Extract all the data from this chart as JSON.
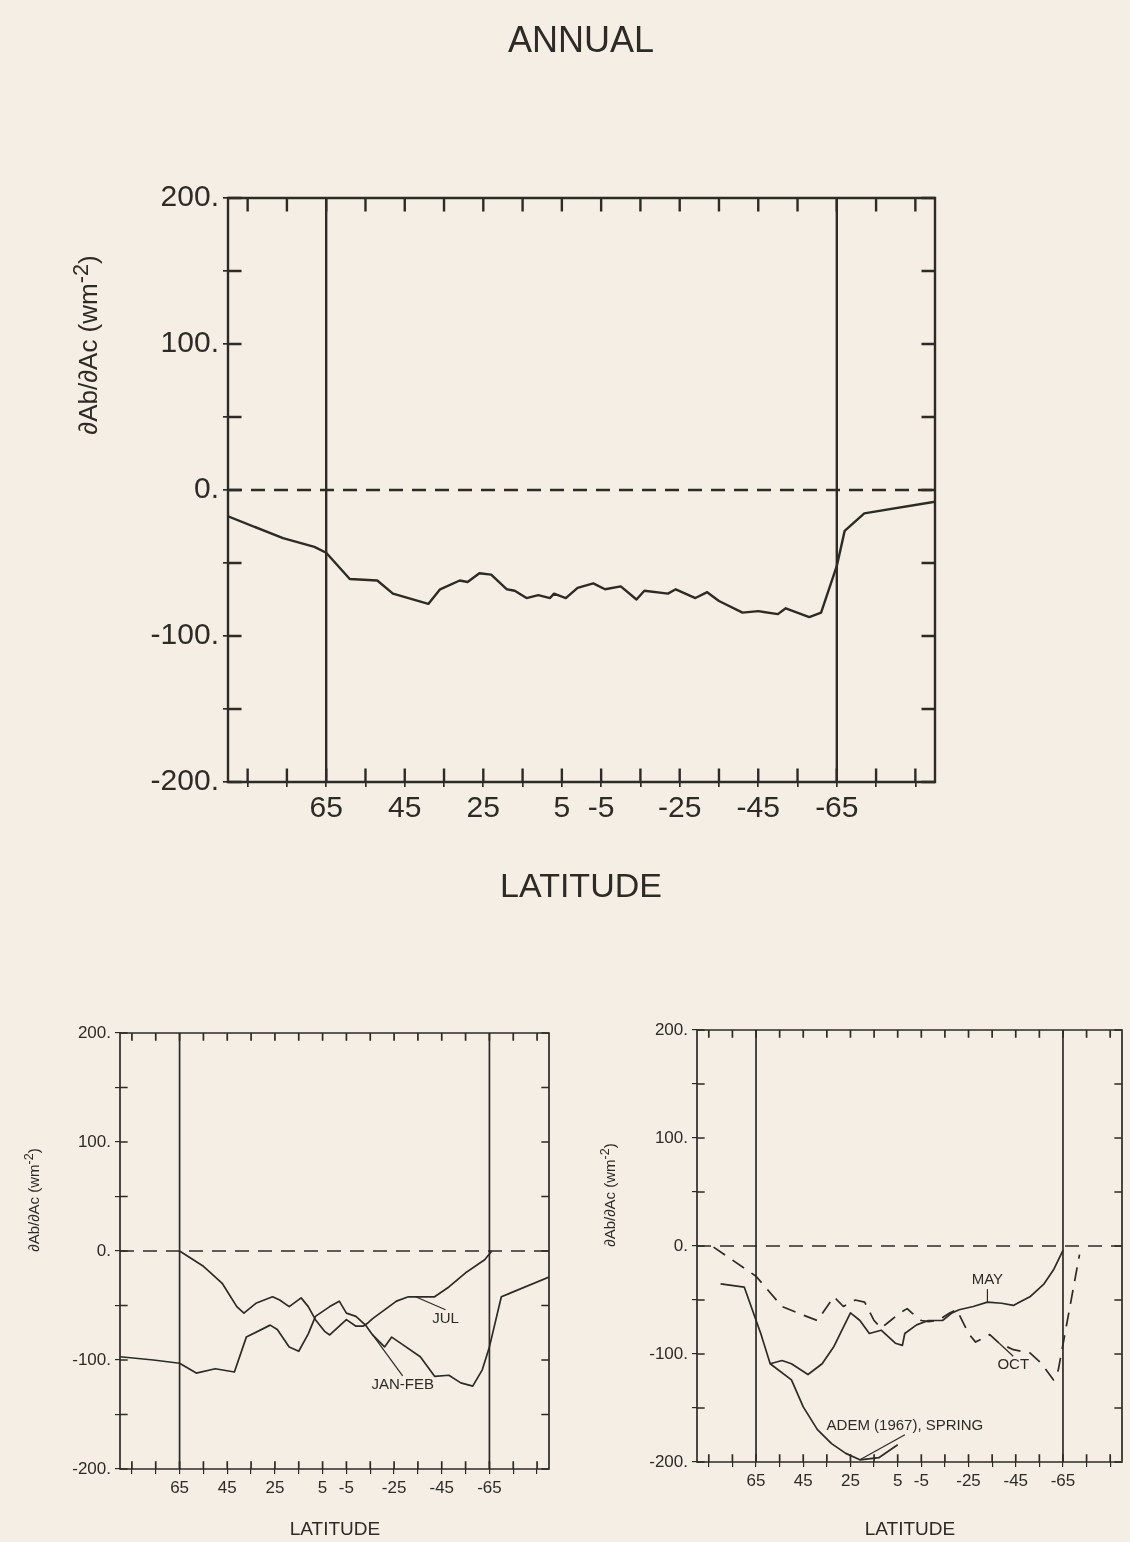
{
  "chart_data": [
    {
      "type": "line",
      "title": "ANNUAL",
      "xlabel": "LATITUDE",
      "ylabel": "∂Ab/∂Ac (wm$^{-2}$)",
      "color": "#2e2a26",
      "marker": "none",
      "x": [
        90,
        76,
        68,
        65,
        59,
        52,
        48,
        39,
        36,
        31,
        29,
        26,
        23,
        19,
        17,
        14,
        11,
        8,
        7,
        4,
        1,
        -3,
        -6,
        -10,
        -14,
        -16,
        -22,
        -24,
        -29,
        -32,
        -35,
        -41,
        -45,
        -50,
        -52,
        -58,
        -61,
        -65,
        -67,
        -72,
        -90
      ],
      "values": [
        -18,
        -33,
        -39,
        -43,
        -61,
        -62,
        -71,
        -78,
        -68,
        -62,
        -63,
        -57,
        -58,
        -68,
        -69,
        -74,
        -72,
        -74,
        -71,
        -74,
        -67,
        -64,
        -68,
        -66,
        -75,
        -69,
        -71,
        -68,
        -74,
        -70,
        -76,
        -84,
        -83,
        -85,
        -81,
        -87,
        -84,
        -52,
        -28,
        -16,
        -8
      ],
      "xlim": [
        90,
        -90
      ],
      "xticks": [
        {
          "value": 85,
          "label": null
        },
        {
          "value": 75,
          "label": null
        },
        65,
        {
          "value": 55,
          "label": null
        },
        45,
        {
          "value": 35,
          "label": null
        },
        25,
        {
          "value": 15,
          "label": null
        },
        5,
        -5,
        {
          "value": -15,
          "label": null
        },
        -25,
        {
          "value": -35,
          "label": null
        },
        -45,
        {
          "value": -55,
          "label": null
        },
        -65,
        {
          "value": -75,
          "label": null
        },
        {
          "value": -85,
          "label": null
        }
      ],
      "ylim": [
        -200,
        200
      ],
      "yticks": [
        {
          "value": -200,
          "label": "-200."
        },
        {
          "value": -150,
          "label": null
        },
        {
          "value": -100,
          "label": "-100."
        },
        {
          "value": -50,
          "label": null
        },
        {
          "value": 0,
          "label": "0."
        },
        {
          "value": 50,
          "label": null
        },
        {
          "value": 100,
          "label": "100."
        },
        {
          "value": 150,
          "label": null
        },
        {
          "value": 200,
          "label": "200."
        }
      ],
      "ref_lines": [
        {
          "axis": "x",
          "value": 65,
          "line_style": "solid",
          "color": "#2e2a26"
        },
        {
          "axis": "x",
          "value": -65,
          "line_style": "solid",
          "color": "#2e2a26"
        },
        {
          "axis": "y",
          "value": 0,
          "line_style": "dashed",
          "color": "#2e2a26"
        }
      ]
    },
    {
      "type": "line",
      "xlabel": "LATITUDE",
      "ylabel": "∂Ab/∂Ac (wm$^{-2}$)",
      "marker": "none",
      "series": [
        {
          "color": "#2e2a26",
          "x": [
            65,
            55,
            47,
            41,
            38,
            33,
            26,
            23,
            19,
            14,
            11,
            8,
            4,
            2,
            -2,
            -5,
            -9,
            -12,
            -14,
            -16,
            -21,
            -26,
            -31,
            -34,
            -42,
            -48,
            -55,
            -63,
            -66
          ],
          "values": [
            0,
            -14,
            -30,
            -51,
            -57,
            -48,
            -42,
            -45,
            -51,
            -43,
            -51,
            -63,
            -74,
            -77,
            -69,
            -63,
            -69,
            -69,
            -66,
            -62,
            -54,
            -46,
            -42,
            -42,
            -42,
            -33,
            -20,
            -8,
            0
          ]
        },
        {
          "color": "#2e2a26",
          "x": [
            90,
            76,
            65,
            58,
            50,
            42,
            37,
            27,
            24,
            19,
            15,
            11,
            8,
            2,
            -2,
            -5,
            -9,
            -13,
            -16,
            -21,
            -24,
            -28,
            -36,
            -42,
            -48,
            -53,
            -58,
            -62,
            -65,
            -70,
            -90
          ],
          "values": [
            -97,
            -100,
            -103,
            -112,
            -108,
            -111,
            -79,
            -68,
            -72,
            -88,
            -92,
            -76,
            -60,
            -51,
            -46,
            -57,
            -60,
            -68,
            -77,
            -88,
            -79,
            -85,
            -97,
            -115,
            -114,
            -121,
            -124,
            -109,
            -88,
            -42,
            -24
          ]
        }
      ],
      "xlim": [
        90,
        -90
      ],
      "xticks": [
        {
          "value": 85,
          "label": null
        },
        {
          "value": 75,
          "label": null
        },
        65,
        {
          "value": 55,
          "label": null
        },
        45,
        {
          "value": 35,
          "label": null
        },
        25,
        {
          "value": 15,
          "label": null
        },
        5,
        -5,
        {
          "value": -15,
          "label": null
        },
        -25,
        {
          "value": -35,
          "label": null
        },
        -45,
        {
          "value": -55,
          "label": null
        },
        -65,
        {
          "value": -75,
          "label": null
        },
        {
          "value": -85,
          "label": null
        }
      ],
      "ylim": [
        -200,
        200
      ],
      "yticks": [
        {
          "value": -200,
          "label": "-200."
        },
        {
          "value": -150,
          "label": null
        },
        {
          "value": -100,
          "label": "-100."
        },
        {
          "value": -50,
          "label": null
        },
        {
          "value": 0,
          "label": "0."
        },
        {
          "value": 50,
          "label": null
        },
        {
          "value": 100,
          "label": "100."
        },
        {
          "value": 150,
          "label": null
        },
        {
          "value": 200,
          "label": "200."
        }
      ],
      "ref_lines": [
        {
          "axis": "x",
          "value": 65,
          "line_style": "solid",
          "color": "#2e2a26"
        },
        {
          "axis": "x",
          "value": -65,
          "line_style": "solid",
          "color": "#2e2a26"
        },
        {
          "axis": "y",
          "value": 0,
          "line_style": "dashed",
          "color": "#2e2a26"
        }
      ],
      "annotations": [
        {
          "text": "JUL",
          "x": -34,
          "y": -42
        },
        {
          "text": "JAN-FEB",
          "x": -16,
          "y": -77
        }
      ]
    },
    {
      "type": "line",
      "xlabel": "LATITUDE",
      "ylabel": "∂Ab/∂Ac (wm$^{-2}$)",
      "marker": "none",
      "series": [
        {
          "color": "#2e2a26",
          "x": [
            80,
            70,
            63,
            59,
            54,
            50,
            43,
            37,
            32,
            25,
            21,
            17,
            12,
            6,
            3,
            2,
            -3,
            -8,
            -14,
            -18,
            -21,
            -27,
            -33,
            -39,
            -44,
            -51,
            -57,
            -61,
            -65
          ],
          "values": [
            -35,
            -38,
            -81,
            -109,
            -106,
            -109,
            -119,
            -109,
            -93,
            -62,
            -69,
            -81,
            -78,
            -90,
            -92,
            -81,
            -73,
            -69,
            -69,
            -62,
            -59,
            -56,
            -52,
            -53,
            -55,
            -47,
            -35,
            -22,
            -4
          ]
        },
        {
          "color": "#2e2a26",
          "line_style": "dashed",
          "x": [
            83,
            65,
            54,
            45,
            39,
            32,
            28,
            23,
            19,
            15,
            12,
            8,
            4,
            1,
            -1,
            -5,
            -8,
            -12,
            -17,
            -20,
            -25,
            -28,
            -34,
            -38,
            -44,
            -51,
            -56,
            -61,
            -63,
            -72
          ],
          "values": [
            -1,
            -28,
            -56,
            -64,
            -69,
            -47,
            -56,
            -50,
            -52,
            -69,
            -76,
            -69,
            -62,
            -58,
            -62,
            -69,
            -70,
            -69,
            -62,
            -59,
            -81,
            -89,
            -82,
            -90,
            -96,
            -99,
            -109,
            -124,
            -115,
            -8
          ]
        },
        {
          "color": "#2e2a26",
          "x": [
            59,
            50,
            45,
            39,
            33,
            27,
            21,
            13,
            5
          ],
          "values": [
            -109,
            -124,
            -149,
            -170,
            -183,
            -192,
            -198,
            -196,
            -184
          ]
        }
      ],
      "xlim": [
        90,
        -90
      ],
      "xticks": [
        {
          "value": 85,
          "label": null
        },
        {
          "value": 75,
          "label": null
        },
        65,
        {
          "value": 55,
          "label": null
        },
        45,
        {
          "value": 35,
          "label": null
        },
        25,
        {
          "value": 15,
          "label": null
        },
        5,
        -5,
        {
          "value": -15,
          "label": null
        },
        -25,
        {
          "value": -35,
          "label": null
        },
        -45,
        {
          "value": -55,
          "label": null
        },
        -65,
        {
          "value": -75,
          "label": null
        },
        {
          "value": -85,
          "label": null
        }
      ],
      "ylim": [
        -200,
        200
      ],
      "yticks": [
        {
          "value": -200,
          "label": "-200."
        },
        {
          "value": -150,
          "label": null
        },
        {
          "value": -100,
          "label": "-100."
        },
        {
          "value": -50,
          "label": null
        },
        {
          "value": 0,
          "label": "0."
        },
        {
          "value": 50,
          "label": null
        },
        {
          "value": 100,
          "label": "100."
        },
        {
          "value": 150,
          "label": null
        },
        {
          "value": 200,
          "label": "200."
        }
      ],
      "ref_lines": [
        {
          "axis": "x",
          "value": 65,
          "line_style": "solid",
          "color": "#2e2a26"
        },
        {
          "axis": "x",
          "value": -65,
          "line_style": "solid",
          "color": "#2e2a26"
        },
        {
          "axis": "y",
          "value": 0,
          "line_style": "dashed",
          "color": "#2e2a26"
        }
      ],
      "annotations": [
        {
          "text": "MAY",
          "x": -33,
          "y": -52
        },
        {
          "text": "OCT",
          "x": -38,
          "y": -90
        },
        {
          "text": "ADEM (1967), SPRING",
          "x": 21,
          "y": -198
        }
      ]
    }
  ]
}
